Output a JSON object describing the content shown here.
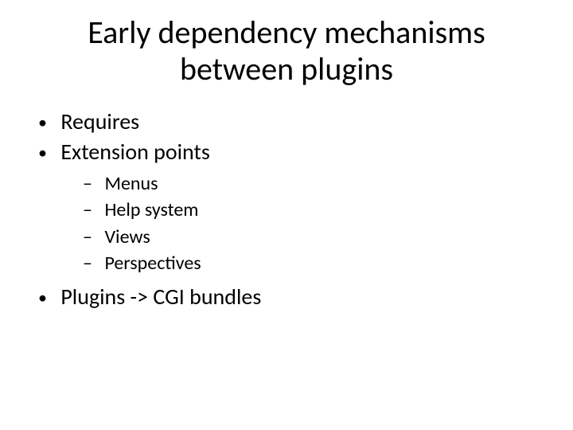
{
  "slide": {
    "title": "Early dependency mechanisms between plugins",
    "bullets": [
      {
        "text": "Requires"
      },
      {
        "text": "Extension points",
        "children": [
          {
            "text": "Menus"
          },
          {
            "text": "Help system"
          },
          {
            "text": "Views"
          },
          {
            "text": "Perspectives"
          }
        ]
      },
      {
        "text": "Plugins -> CGI bundles"
      }
    ],
    "colors": {
      "background": "#ffffff",
      "text": "#000000"
    },
    "fonts": {
      "title_size_pt": 40,
      "level1_size_pt": 28,
      "level2_size_pt": 24,
      "family": "Calibri"
    }
  }
}
